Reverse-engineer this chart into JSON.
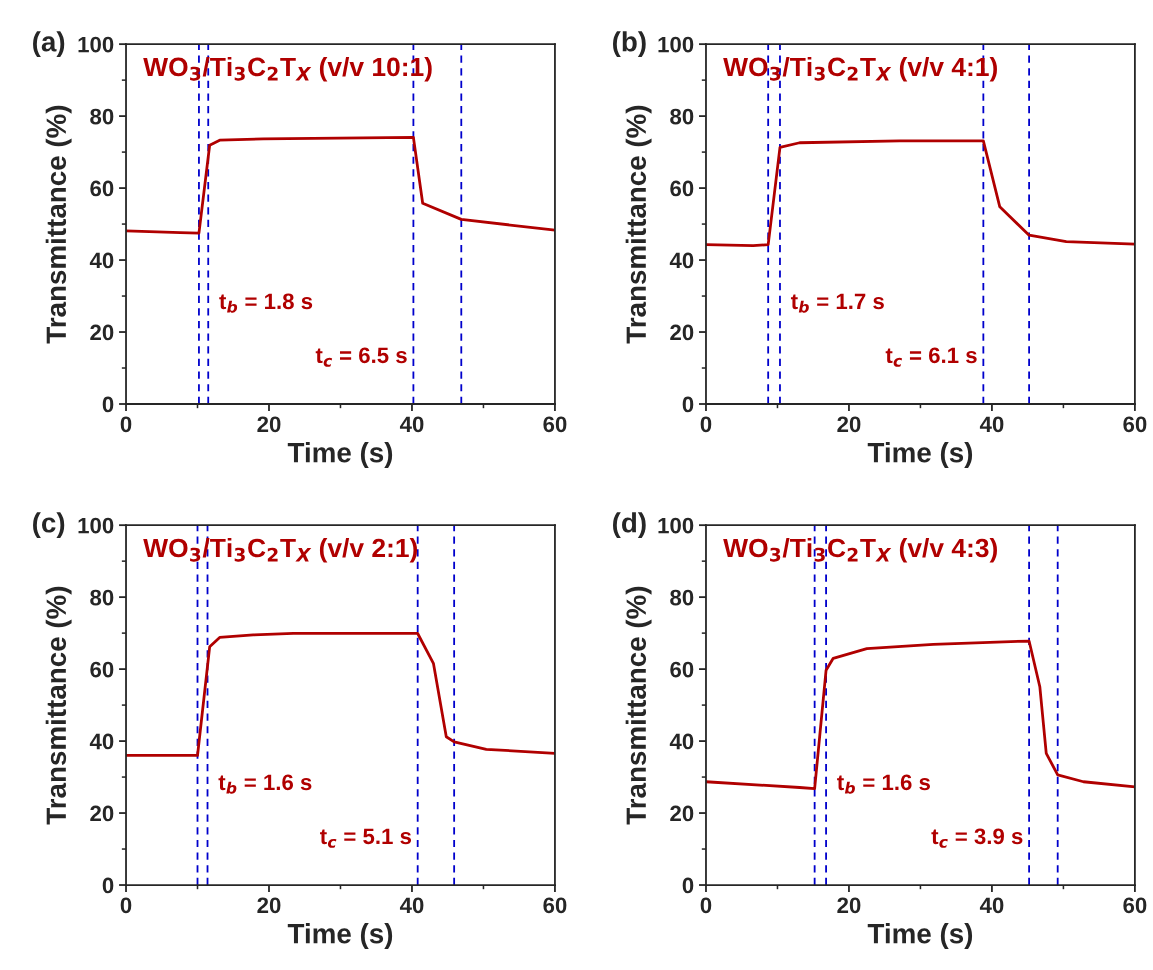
{
  "chart_data": [
    {
      "type": "line",
      "title": "WO$_{3}$/Ti$_{3}$C$_{2}$T$_{X}$ (v/v 10:1)",
      "xlabel": "Time (s)",
      "ylabel": "Transmittance (%)",
      "annotations": [
        "(a)",
        "t$_{b}$ = 1.8 s",
        "t$_{c}$ = 6.5 s"
      ],
      "xlim": [
        0,
        60
      ],
      "ylim": [
        0,
        100
      ],
      "xticks": [
        0,
        20,
        40,
        60
      ],
      "yticks": [
        0,
        20,
        40,
        60,
        80,
        100
      ],
      "grid": false,
      "line_style": "solid",
      "series": [
        {
          "color": "#b00000",
          "x": [
            0,
            7.6,
            10.2,
            11.7,
            13.1,
            19.2,
            40.2,
            41.5,
            46.9,
            60
          ],
          "values": [
            48.1,
            47.6,
            47.5,
            71.9,
            73.3,
            73.7,
            74.1,
            55.8,
            51.3,
            48.3
          ]
        }
      ],
      "ref_lines": [
        {
          "axis": "x",
          "value": 10.2,
          "color": "#0000cc",
          "line_style": "dashed"
        },
        {
          "axis": "x",
          "value": 11.5,
          "color": "#0000cc",
          "line_style": "dashed"
        },
        {
          "axis": "x",
          "value": 40.2,
          "color": "#0000cc",
          "line_style": "dashed"
        },
        {
          "axis": "x",
          "value": 46.9,
          "color": "#0000cc",
          "line_style": "dashed"
        }
      ]
    },
    {
      "type": "line",
      "title": "WO$_{3}$/Ti$_{3}$C$_{2}$T$_{X}$ (v/v 4:1)",
      "xlabel": "Time (s)",
      "ylabel": "Transmittance (%)",
      "annotations": [
        "(b)",
        "t$_{b}$ = 1.7 s",
        "t$_{c}$ = 6.1 s"
      ],
      "xlim": [
        0,
        60
      ],
      "ylim": [
        0,
        100
      ],
      "xticks": [
        0,
        20,
        40,
        60
      ],
      "yticks": [
        0,
        20,
        40,
        60,
        80,
        100
      ],
      "grid": false,
      "line_style": "solid",
      "series": [
        {
          "color": "#b00000",
          "x": [
            0,
            6.6,
            8.7,
            10.35,
            13.1,
            27.1,
            38.8,
            41.1,
            45.2,
            50.4,
            60
          ],
          "values": [
            44.3,
            44.0,
            44.3,
            71.3,
            72.6,
            73.1,
            73.1,
            54.8,
            46.9,
            45.1,
            44.4
          ]
        }
      ],
      "ref_lines": [
        {
          "axis": "x",
          "value": 8.7,
          "color": "#0000cc",
          "line_style": "dashed"
        },
        {
          "axis": "x",
          "value": 10.35,
          "color": "#0000cc",
          "line_style": "dashed"
        },
        {
          "axis": "x",
          "value": 38.8,
          "color": "#0000cc",
          "line_style": "dashed"
        },
        {
          "axis": "x",
          "value": 45.2,
          "color": "#0000cc",
          "line_style": "dashed"
        }
      ]
    },
    {
      "type": "line",
      "title": "WO$_{3}$/Ti$_{3}$C$_{2}$T$_{X}$ (v/v 2:1)",
      "xlabel": "Time (s)",
      "ylabel": "Transmittance (%)",
      "annotations": [
        "(c)",
        "t$_{b}$ = 1.6 s",
        "t$_{c}$ = 5.1 s"
      ],
      "xlim": [
        0,
        60
      ],
      "ylim": [
        0,
        100
      ],
      "xticks": [
        0,
        20,
        40,
        60
      ],
      "yticks": [
        0,
        20,
        40,
        60,
        80,
        100
      ],
      "grid": false,
      "line_style": "solid",
      "series": [
        {
          "color": "#b00000",
          "x": [
            0,
            10.0,
            11.7,
            13.1,
            17.8,
            23.4,
            40.8,
            43.0,
            44.8,
            45.9,
            50.4,
            60
          ],
          "values": [
            36.0,
            36.0,
            66.2,
            68.8,
            69.5,
            69.9,
            69.9,
            61.6,
            41.2,
            39.8,
            37.7,
            36.6
          ]
        }
      ],
      "ref_lines": [
        {
          "axis": "x",
          "value": 10.0,
          "color": "#0000cc",
          "line_style": "dashed"
        },
        {
          "axis": "x",
          "value": 11.4,
          "color": "#0000cc",
          "line_style": "dashed"
        },
        {
          "axis": "x",
          "value": 40.8,
          "color": "#0000cc",
          "line_style": "dashed"
        },
        {
          "axis": "x",
          "value": 45.9,
          "color": "#0000cc",
          "line_style": "dashed"
        }
      ]
    },
    {
      "type": "line",
      "title": "WO$_{3}$/Ti$_{3}$C$_{2}$T$_{X}$ (v/v 4:3)",
      "xlabel": "Time (s)",
      "ylabel": "Transmittance (%)",
      "annotations": [
        "(d)",
        "t$_{b}$ = 1.6 s",
        "t$_{c}$ = 3.9 s"
      ],
      "xlim": [
        0,
        60
      ],
      "ylim": [
        0,
        100
      ],
      "xticks": [
        0,
        20,
        40,
        60
      ],
      "yticks": [
        0,
        20,
        40,
        60,
        80,
        100
      ],
      "grid": false,
      "line_style": "solid",
      "series": [
        {
          "color": "#b00000",
          "x": [
            0,
            13.1,
            15.2,
            16.8,
            17.8,
            22.5,
            31.8,
            45.2,
            46.7,
            47.6,
            49.2,
            52.8,
            60
          ],
          "values": [
            28.7,
            27.1,
            26.8,
            59.7,
            63.0,
            65.7,
            66.9,
            67.8,
            55.1,
            36.6,
            30.6,
            28.7,
            27.3
          ]
        }
      ],
      "ref_lines": [
        {
          "axis": "x",
          "value": 15.2,
          "color": "#0000cc",
          "line_style": "dashed"
        },
        {
          "axis": "x",
          "value": 16.8,
          "color": "#0000cc",
          "line_style": "dashed"
        },
        {
          "axis": "x",
          "value": 45.2,
          "color": "#0000cc",
          "line_style": "dashed"
        },
        {
          "axis": "x",
          "value": 49.2,
          "color": "#0000cc",
          "line_style": "dashed"
        }
      ]
    }
  ]
}
